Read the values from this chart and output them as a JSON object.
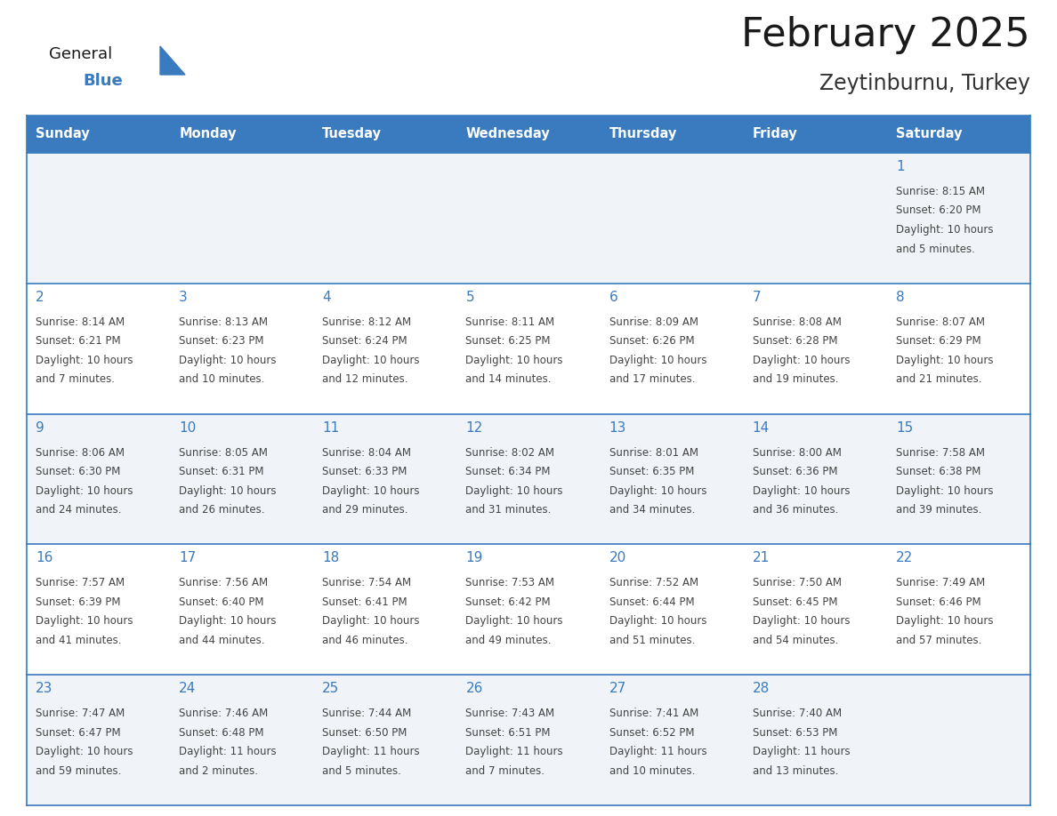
{
  "title": "February 2025",
  "subtitle": "Zeytinburnu, Turkey",
  "days_of_week": [
    "Sunday",
    "Monday",
    "Tuesday",
    "Wednesday",
    "Thursday",
    "Friday",
    "Saturday"
  ],
  "header_bg": "#3a7abf",
  "header_text_color": "#ffffff",
  "cell_bg_light": "#f0f4f8",
  "cell_bg_white": "#ffffff",
  "day_number_color": "#3a7abf",
  "info_text_color": "#444444",
  "border_color": "#3a7abf",
  "title_color": "#1a1a1a",
  "subtitle_color": "#333333",
  "logo_general_color": "#1a1a1a",
  "logo_blue_color": "#3a7abf",
  "calendar_data": [
    [
      null,
      null,
      null,
      null,
      null,
      null,
      1
    ],
    [
      2,
      3,
      4,
      5,
      6,
      7,
      8
    ],
    [
      9,
      10,
      11,
      12,
      13,
      14,
      15
    ],
    [
      16,
      17,
      18,
      19,
      20,
      21,
      22
    ],
    [
      23,
      24,
      25,
      26,
      27,
      28,
      null
    ]
  ],
  "cell_info": {
    "1": [
      "Sunrise: 8:15 AM",
      "Sunset: 6:20 PM",
      "Daylight: 10 hours",
      "and 5 minutes."
    ],
    "2": [
      "Sunrise: 8:14 AM",
      "Sunset: 6:21 PM",
      "Daylight: 10 hours",
      "and 7 minutes."
    ],
    "3": [
      "Sunrise: 8:13 AM",
      "Sunset: 6:23 PM",
      "Daylight: 10 hours",
      "and 10 minutes."
    ],
    "4": [
      "Sunrise: 8:12 AM",
      "Sunset: 6:24 PM",
      "Daylight: 10 hours",
      "and 12 minutes."
    ],
    "5": [
      "Sunrise: 8:11 AM",
      "Sunset: 6:25 PM",
      "Daylight: 10 hours",
      "and 14 minutes."
    ],
    "6": [
      "Sunrise: 8:09 AM",
      "Sunset: 6:26 PM",
      "Daylight: 10 hours",
      "and 17 minutes."
    ],
    "7": [
      "Sunrise: 8:08 AM",
      "Sunset: 6:28 PM",
      "Daylight: 10 hours",
      "and 19 minutes."
    ],
    "8": [
      "Sunrise: 8:07 AM",
      "Sunset: 6:29 PM",
      "Daylight: 10 hours",
      "and 21 minutes."
    ],
    "9": [
      "Sunrise: 8:06 AM",
      "Sunset: 6:30 PM",
      "Daylight: 10 hours",
      "and 24 minutes."
    ],
    "10": [
      "Sunrise: 8:05 AM",
      "Sunset: 6:31 PM",
      "Daylight: 10 hours",
      "and 26 minutes."
    ],
    "11": [
      "Sunrise: 8:04 AM",
      "Sunset: 6:33 PM",
      "Daylight: 10 hours",
      "and 29 minutes."
    ],
    "12": [
      "Sunrise: 8:02 AM",
      "Sunset: 6:34 PM",
      "Daylight: 10 hours",
      "and 31 minutes."
    ],
    "13": [
      "Sunrise: 8:01 AM",
      "Sunset: 6:35 PM",
      "Daylight: 10 hours",
      "and 34 minutes."
    ],
    "14": [
      "Sunrise: 8:00 AM",
      "Sunset: 6:36 PM",
      "Daylight: 10 hours",
      "and 36 minutes."
    ],
    "15": [
      "Sunrise: 7:58 AM",
      "Sunset: 6:38 PM",
      "Daylight: 10 hours",
      "and 39 minutes."
    ],
    "16": [
      "Sunrise: 7:57 AM",
      "Sunset: 6:39 PM",
      "Daylight: 10 hours",
      "and 41 minutes."
    ],
    "17": [
      "Sunrise: 7:56 AM",
      "Sunset: 6:40 PM",
      "Daylight: 10 hours",
      "and 44 minutes."
    ],
    "18": [
      "Sunrise: 7:54 AM",
      "Sunset: 6:41 PM",
      "Daylight: 10 hours",
      "and 46 minutes."
    ],
    "19": [
      "Sunrise: 7:53 AM",
      "Sunset: 6:42 PM",
      "Daylight: 10 hours",
      "and 49 minutes."
    ],
    "20": [
      "Sunrise: 7:52 AM",
      "Sunset: 6:44 PM",
      "Daylight: 10 hours",
      "and 51 minutes."
    ],
    "21": [
      "Sunrise: 7:50 AM",
      "Sunset: 6:45 PM",
      "Daylight: 10 hours",
      "and 54 minutes."
    ],
    "22": [
      "Sunrise: 7:49 AM",
      "Sunset: 6:46 PM",
      "Daylight: 10 hours",
      "and 57 minutes."
    ],
    "23": [
      "Sunrise: 7:47 AM",
      "Sunset: 6:47 PM",
      "Daylight: 10 hours",
      "and 59 minutes."
    ],
    "24": [
      "Sunrise: 7:46 AM",
      "Sunset: 6:48 PM",
      "Daylight: 11 hours",
      "and 2 minutes."
    ],
    "25": [
      "Sunrise: 7:44 AM",
      "Sunset: 6:50 PM",
      "Daylight: 11 hours",
      "and 5 minutes."
    ],
    "26": [
      "Sunrise: 7:43 AM",
      "Sunset: 6:51 PM",
      "Daylight: 11 hours",
      "and 7 minutes."
    ],
    "27": [
      "Sunrise: 7:41 AM",
      "Sunset: 6:52 PM",
      "Daylight: 11 hours",
      "and 10 minutes."
    ],
    "28": [
      "Sunrise: 7:40 AM",
      "Sunset: 6:53 PM",
      "Daylight: 11 hours",
      "and 13 minutes."
    ]
  },
  "figsize": [
    11.88,
    9.18
  ],
  "dpi": 100
}
